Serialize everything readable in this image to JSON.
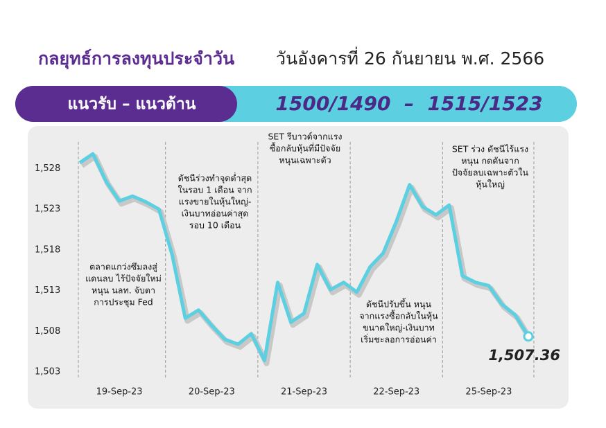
{
  "title": "กลยุทธ์การลงทุนประจำวัน",
  "date": "วันอังคารที่ 26 กันยายน พ.ศ. 2566",
  "banner": {
    "label": "แนวรับ – แนวต้าน",
    "value": "1500/1490  –  1515/1523"
  },
  "chart_data": {
    "type": "line",
    "categories": [
      null,
      null,
      null,
      "19-Sep-23",
      null,
      null,
      null,
      null,
      null,
      null,
      "20-Sep-23",
      null,
      null,
      null,
      null,
      null,
      null,
      "21-Sep-23",
      null,
      null,
      null,
      null,
      null,
      null,
      "22-Sep-23",
      null,
      null,
      null,
      null,
      null,
      null,
      "25-Sep-23",
      null,
      null,
      null
    ],
    "series": [
      {
        "color": "#5cd0e0",
        "values": [
          1528.7,
          1529.8,
          1526.4,
          1524.0,
          1524.6,
          1523.9,
          1523.0,
          1517.4,
          1509.6,
          1510.6,
          1508.7,
          1507.0,
          1506.4,
          1507.7,
          1504.4,
          1514.0,
          1509.1,
          1510.2,
          1516.2,
          1513.1,
          1514.0,
          1512.8,
          1515.9,
          1517.6,
          1521.5,
          1526.0,
          1523.3,
          1522.3,
          1523.5,
          1514.8,
          1514.0,
          1513.6,
          1511.3,
          1510.0,
          1507.36
        ],
        "value_labels": [
          null,
          null,
          null,
          null,
          null,
          null,
          null,
          null,
          null,
          null,
          null,
          null,
          null,
          null,
          null,
          null,
          null,
          null,
          null,
          null,
          null,
          null,
          null,
          null,
          null,
          null,
          null,
          null,
          null,
          null,
          null,
          null,
          null,
          null,
          "1,507.36"
        ]
      }
    ],
    "ylim": [
      1502,
      1532
    ],
    "yticks": [
      {
        "value": 1503,
        "label": "1,503"
      },
      {
        "value": 1508,
        "label": "1,508"
      },
      {
        "value": 1513,
        "label": "1,513"
      },
      {
        "value": 1518,
        "label": "1,518"
      },
      {
        "value": 1523,
        "label": "1,523"
      },
      {
        "value": 1528,
        "label": "1,528"
      }
    ],
    "annotations": [
      [
        "ตลาดแกว่งซึมลงสู่",
        "แดนลบ ไร้ปัจจัยใหม่",
        "หนุน นลท. จับตา",
        "การประชุม Fed"
      ],
      [
        "ดัชนีร่วงทำจุดต่ำสุด",
        "ในรอบ 1 เดือน จาก",
        "แรงขายในหุ้นใหญ่-",
        "เงินบาทอ่อนค่าสุด",
        "รอบ 10 เดือน"
      ],
      [
        "SET รีบาวด์จากแรง",
        "ซื้อกลับหุ้นที่มีปัจจัย",
        "หนุนเฉพาะตัว"
      ],
      [
        "ดัชนีปรับขึ้น หนุน",
        "จากแรงซื้อกลับในหุ้น",
        "ขนาดใหญ่-เงินบาท",
        "เริ่มชะลอการอ่อนค่า"
      ],
      [
        "SET ร่วง ดัชนีไร้แรง",
        "หนุน กดดันจาก",
        "ปัจจัยลบเฉพาะตัวใน",
        "หุ้นใหญ่"
      ]
    ]
  }
}
